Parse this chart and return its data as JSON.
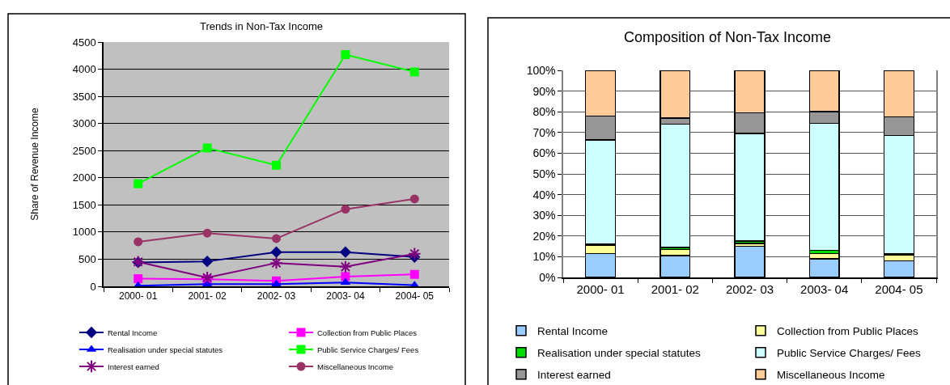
{
  "chart_data": [
    {
      "type": "line",
      "title": "Trends in Non-Tax Income",
      "ylabel": "Share of Revenue Income",
      "categories": [
        "2000- 01",
        "2001- 02",
        "2002- 03",
        "2003- 04",
        "2004- 05"
      ],
      "ylim": [
        0,
        4500
      ],
      "yticks": [
        0,
        500,
        1000,
        1500,
        2000,
        2500,
        3000,
        3500,
        4000,
        4500
      ],
      "grid": "y",
      "legend": "bottom",
      "line_style": "solid",
      "series": [
        {
          "name": "Rental Income",
          "color": "#000080",
          "marker": "diamond",
          "values": [
            440,
            460,
            630,
            630,
            540
          ]
        },
        {
          "name": "Collection from Public Places",
          "color": "#ff00ff",
          "marker": "square",
          "values": [
            140,
            130,
            100,
            180,
            220
          ]
        },
        {
          "name": "Realisation under special statutes",
          "color": "#0000ff",
          "marker": "triangle",
          "values": [
            10,
            40,
            40,
            70,
            20
          ]
        },
        {
          "name": "Public Service Charges/ Fees",
          "color": "#00ff00",
          "marker": "square",
          "values": [
            1890,
            2550,
            2230,
            4270,
            3950
          ]
        },
        {
          "name": "Interest earned",
          "color": "#800080",
          "marker": "cross",
          "values": [
            450,
            160,
            430,
            360,
            600
          ]
        },
        {
          "name": "Miscellaneous Income",
          "color": "#993366",
          "marker": "circle",
          "values": [
            820,
            980,
            880,
            1420,
            1610
          ]
        }
      ]
    },
    {
      "type": "bar",
      "stacked": true,
      "title": "Composition of Non-Tax Income",
      "categories": [
        "2000- 01",
        "2001- 02",
        "2002- 03",
        "2003- 04",
        "2004- 05"
      ],
      "ylim": [
        0,
        100
      ],
      "yticks": [
        {
          "value": 0,
          "label": "0%"
        },
        {
          "value": 10,
          "label": "10%"
        },
        {
          "value": 20,
          "label": "20%"
        },
        {
          "value": 30,
          "label": "30%"
        },
        {
          "value": 40,
          "label": "40%"
        },
        {
          "value": 50,
          "label": "50%"
        },
        {
          "value": 60,
          "label": "60%"
        },
        {
          "value": 70,
          "label": "70%"
        },
        {
          "value": 80,
          "label": "80%"
        },
        {
          "value": 90,
          "label": "90%"
        },
        {
          "value": 100,
          "label": "100%"
        }
      ],
      "grid": "y",
      "legend": "bottom",
      "series": [
        {
          "name": "Rental Income",
          "color": "#99ccff",
          "values": [
            11.5,
            10.5,
            15,
            9,
            8
          ]
        },
        {
          "name": "Collection from Public Places",
          "color": "#ffff99",
          "values": [
            4,
            3,
            1.5,
            2.5,
            3
          ]
        },
        {
          "name": "Realisation under special statutes",
          "color": "#00dd00",
          "values": [
            0.5,
            1,
            1,
            1.5,
            0.5
          ]
        },
        {
          "name": "Public Service Charges/ Fees",
          "color": "#ccffff",
          "values": [
            50.5,
            59.5,
            52,
            61.5,
            57
          ]
        },
        {
          "name": "Interest earned",
          "color": "#969696",
          "values": [
            11.5,
            3,
            10,
            5.5,
            9
          ]
        },
        {
          "name": "Miscellaneous Income",
          "color": "#ffcc99",
          "values": [
            22,
            23,
            20.5,
            20,
            22.5
          ]
        }
      ]
    }
  ]
}
